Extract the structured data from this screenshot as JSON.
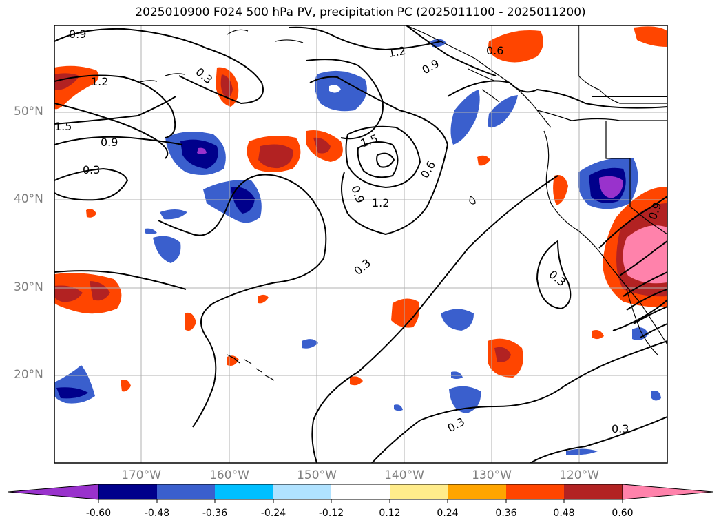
{
  "title": "2025010900 F024 500 hPa PV, precipitation PC (2025011100 - 2025011200)",
  "lat_labels": [
    "50°N",
    "40°N",
    "30°N",
    "20°N"
  ],
  "lon_labels": [
    "170°W",
    "160°W",
    "150°W",
    "140°W",
    "130°W",
    "120°W"
  ],
  "contour_labels": [
    "0.9",
    "1.2",
    "1.5",
    "0.9",
    "0.3",
    "0.3",
    "1.5",
    "1.2",
    "0.9",
    "0.6",
    "0.6",
    "0.9",
    "1.2",
    "0.3",
    "0.3",
    "0.3",
    "0.3",
    "0.9"
  ],
  "colorbar": {
    "ticks": [
      "-0.60",
      "-0.48",
      "-0.36",
      "-0.24",
      "-0.12",
      "0.12",
      "0.24",
      "0.36",
      "0.48",
      "0.60"
    ],
    "colors": [
      "#9932cc",
      "#00008b",
      "#3a5fcd",
      "#00bfff",
      "#b0e2ff",
      "#ffffff",
      "#ffec8b",
      "#ffa500",
      "#ff4500",
      "#b22222",
      "#ff82ab",
      "#ff82ab"
    ]
  },
  "chart_data": {
    "type": "map",
    "projection": "Lambert conformal (North Pacific)",
    "lat_range": [
      10,
      60
    ],
    "lon_range": [
      -180,
      -110
    ],
    "contour_field": "500 hPa PV",
    "contour_levels": [
      0.3,
      0.6,
      0.9,
      1.2,
      1.5
    ],
    "shaded_field": "precipitation PC",
    "shade_levels": [
      -0.6,
      -0.48,
      -0.36,
      -0.24,
      -0.12,
      0.12,
      0.24,
      0.36,
      0.48,
      0.6
    ],
    "grid": true,
    "colorbar_extend": "both"
  }
}
